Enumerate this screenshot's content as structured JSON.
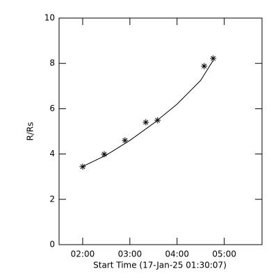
{
  "chart_data": {
    "type": "scatter",
    "xlabel": "Start Time (17-Jan-25 01:30:07)",
    "ylabel": "R/Rs",
    "xlim": [
      1.5,
      5.8
    ],
    "ylim": [
      0,
      10
    ],
    "xticks": [
      {
        "value": 2,
        "label": "02:00"
      },
      {
        "value": 3,
        "label": "03:00"
      },
      {
        "value": 4,
        "label": "04:00"
      },
      {
        "value": 5,
        "label": "05:00"
      }
    ],
    "yticks": [
      0,
      2,
      4,
      6,
      8,
      10
    ],
    "series": [
      {
        "marker": "asterisk",
        "color": "#000000",
        "x": [
          2.0,
          2.456,
          2.897,
          3.338,
          3.588,
          4.574,
          4.765
        ],
        "values": [
          3.44,
          3.99,
          4.6,
          5.4,
          5.49,
          7.88,
          8.22
        ]
      },
      {
        "marker": "line",
        "color": "#000000",
        "x": [
          2.0,
          2.5,
          3.0,
          3.5,
          4.0,
          4.5,
          4.77
        ],
        "values": [
          3.45,
          3.95,
          4.6,
          5.35,
          6.2,
          7.25,
          8.15
        ]
      }
    ]
  }
}
